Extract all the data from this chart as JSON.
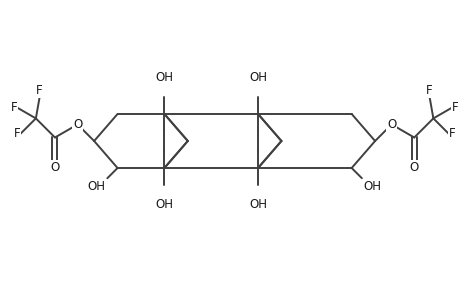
{
  "bg_color": "#ffffff",
  "line_color": "#404040",
  "text_color": "#1a1a1a",
  "line_width": 1.4,
  "font_size": 8.5,
  "figsize": [
    4.6,
    3.0
  ],
  "dpi": 100,
  "xlim": [
    0,
    10
  ],
  "ylim": [
    0.8,
    5.8
  ],
  "ring_hw": 0.52,
  "ring_rh": 0.6
}
